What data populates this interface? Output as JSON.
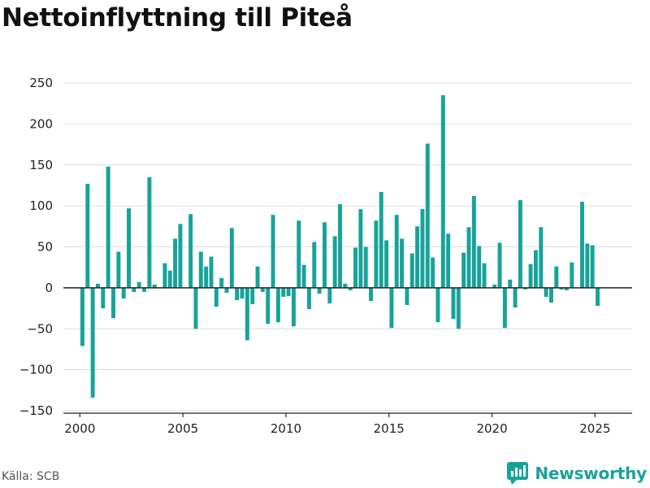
{
  "header": {
    "title": "Nettoinflyttning till Piteå"
  },
  "footer": {
    "source": "Källa: SCB",
    "brand": "Newsworthy"
  },
  "colors": {
    "bar": "#17a39b",
    "brand": "#16a39a",
    "grid": "#dddddd",
    "zero_line": "#222222"
  },
  "chart_data": {
    "type": "bar",
    "title": "Nettoinflyttning till Piteå",
    "xlabel": "",
    "ylabel": "",
    "frequency": "quarterly",
    "start": "2000 Q1",
    "end": "2025 Q1",
    "xlim": [
      1999.2,
      2026.8
    ],
    "ylim": [
      -150,
      250
    ],
    "yticks": [
      -150,
      -100,
      -50,
      0,
      50,
      100,
      150,
      200,
      250
    ],
    "ytick_labels": [
      "−150",
      "−100",
      "−50",
      "0",
      "50",
      "100",
      "150",
      "200",
      "250"
    ],
    "xticks": [
      2000,
      2005,
      2010,
      2015,
      2020,
      2025
    ],
    "xtick_labels": [
      "2000",
      "2005",
      "2010",
      "2015",
      "2020",
      "2025"
    ],
    "grid": true,
    "categories": [
      "2000 Q1",
      "2000 Q2",
      "2000 Q3",
      "2000 Q4",
      "2001 Q1",
      "2001 Q2",
      "2001 Q3",
      "2001 Q4",
      "2002 Q1",
      "2002 Q2",
      "2002 Q3",
      "2002 Q4",
      "2003 Q1",
      "2003 Q2",
      "2003 Q3",
      "2003 Q4",
      "2004 Q1",
      "2004 Q2",
      "2004 Q3",
      "2004 Q4",
      "2005 Q1",
      "2005 Q2",
      "2005 Q3",
      "2005 Q4",
      "2006 Q1",
      "2006 Q2",
      "2006 Q3",
      "2006 Q4",
      "2007 Q1",
      "2007 Q2",
      "2007 Q3",
      "2007 Q4",
      "2008 Q1",
      "2008 Q2",
      "2008 Q3",
      "2008 Q4",
      "2009 Q1",
      "2009 Q2",
      "2009 Q3",
      "2009 Q4",
      "2010 Q1",
      "2010 Q2",
      "2010 Q3",
      "2010 Q4",
      "2011 Q1",
      "2011 Q2",
      "2011 Q3",
      "2011 Q4",
      "2012 Q1",
      "2012 Q2",
      "2012 Q3",
      "2012 Q4",
      "2013 Q1",
      "2013 Q2",
      "2013 Q3",
      "2013 Q4",
      "2014 Q1",
      "2014 Q2",
      "2014 Q3",
      "2014 Q4",
      "2015 Q1",
      "2015 Q2",
      "2015 Q3",
      "2015 Q4",
      "2016 Q1",
      "2016 Q2",
      "2016 Q3",
      "2016 Q4",
      "2017 Q1",
      "2017 Q2",
      "2017 Q3",
      "2017 Q4",
      "2018 Q1",
      "2018 Q2",
      "2018 Q3",
      "2018 Q4",
      "2019 Q1",
      "2019 Q2",
      "2019 Q3",
      "2019 Q4",
      "2020 Q1",
      "2020 Q2",
      "2020 Q3",
      "2020 Q4",
      "2021 Q1",
      "2021 Q2",
      "2021 Q3",
      "2021 Q4",
      "2022 Q1",
      "2022 Q2",
      "2022 Q3",
      "2022 Q4",
      "2023 Q1",
      "2023 Q2",
      "2023 Q3",
      "2023 Q4",
      "2024 Q1",
      "2024 Q2",
      "2024 Q3",
      "2024 Q4",
      "2025 Q1"
    ],
    "values": [
      -71,
      127,
      -134,
      5,
      -25,
      148,
      -37,
      44,
      -13,
      97,
      -5,
      7,
      -5,
      135,
      4,
      0,
      30,
      21,
      60,
      78,
      0,
      90,
      -50,
      44,
      26,
      38,
      -23,
      12,
      -6,
      73,
      -15,
      -13,
      -64,
      -20,
      26,
      -5,
      -44,
      89,
      -42,
      -11,
      -10,
      -47,
      82,
      28,
      -26,
      56,
      -7,
      80,
      -19,
      63,
      102,
      5,
      -3,
      49,
      96,
      50,
      -16,
      82,
      117,
      58,
      -49,
      89,
      60,
      -21,
      42,
      75,
      96,
      176,
      37,
      -42,
      235,
      66,
      -38,
      -50,
      43,
      74,
      112,
      51,
      30,
      0,
      4,
      55,
      -49,
      10,
      -24,
      107,
      -2,
      29,
      46,
      74,
      -11,
      -18,
      26,
      -2,
      -3,
      31,
      0,
      105,
      54,
      52,
      -22
    ]
  }
}
